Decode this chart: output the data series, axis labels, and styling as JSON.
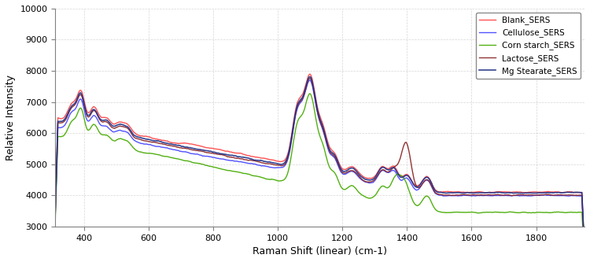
{
  "title": "",
  "xlabel": "Raman Shift (linear) (cm-1)",
  "ylabel": "Relative Intensity",
  "xlim": [
    310,
    1950
  ],
  "ylim": [
    3000,
    10000
  ],
  "yticks": [
    3000,
    4000,
    5000,
    6000,
    7000,
    8000,
    9000,
    10000
  ],
  "xticks": [
    400,
    600,
    800,
    1000,
    1200,
    1400,
    1600,
    1800
  ],
  "legend_labels": [
    "Blank_SERS",
    "Cellulose_SERS",
    "Corn starch_SERS",
    "Lactose_SERS",
    "Mg Stearate_SERS"
  ],
  "colors": [
    "#ff4444",
    "#4444ff",
    "#44aa00",
    "#882222",
    "#223388"
  ],
  "linewidths": [
    1.0,
    1.0,
    1.0,
    1.0,
    1.2
  ],
  "background_color": "#ffffff",
  "grid_color": "#cccccc"
}
